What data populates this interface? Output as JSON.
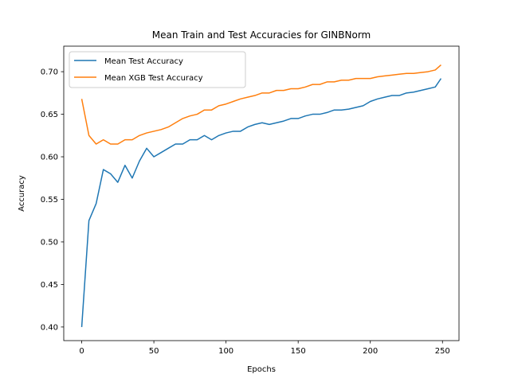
{
  "chart_data": {
    "type": "line",
    "title": "Mean Train and Test Accuracies for GINBNorm",
    "xlabel": "Epochs",
    "ylabel": "Accuracy",
    "xlim": [
      -12.45,
      261.45
    ],
    "ylim": [
      0.384,
      0.73
    ],
    "xticks": [
      0,
      50,
      100,
      150,
      200,
      250
    ],
    "yticks": [
      0.4,
      0.45,
      0.5,
      0.55,
      0.6,
      0.65,
      0.7
    ],
    "ytick_labels": [
      "0.40",
      "0.45",
      "0.50",
      "0.55",
      "0.60",
      "0.65",
      "0.70"
    ],
    "grid": false,
    "legend_position": "upper-left",
    "x": [
      0,
      5,
      10,
      15,
      20,
      25,
      30,
      35,
      40,
      45,
      50,
      55,
      60,
      65,
      70,
      75,
      80,
      85,
      90,
      95,
      100,
      105,
      110,
      115,
      120,
      125,
      130,
      135,
      140,
      145,
      150,
      155,
      160,
      165,
      170,
      175,
      180,
      185,
      190,
      195,
      200,
      205,
      210,
      215,
      220,
      225,
      230,
      235,
      240,
      245,
      249
    ],
    "series": [
      {
        "name": "Mean Test Accuracy",
        "color": "#1f77b4",
        "values": [
          0.4,
          0.525,
          0.545,
          0.585,
          0.58,
          0.57,
          0.59,
          0.575,
          0.595,
          0.61,
          0.6,
          0.605,
          0.61,
          0.615,
          0.615,
          0.62,
          0.62,
          0.625,
          0.62,
          0.625,
          0.628,
          0.63,
          0.63,
          0.635,
          0.638,
          0.64,
          0.638,
          0.64,
          0.642,
          0.645,
          0.645,
          0.648,
          0.65,
          0.65,
          0.652,
          0.655,
          0.655,
          0.656,
          0.658,
          0.66,
          0.665,
          0.668,
          0.67,
          0.672,
          0.672,
          0.675,
          0.676,
          0.678,
          0.68,
          0.682,
          0.692
        ]
      },
      {
        "name": "Mean XGB Test Accuracy",
        "color": "#ff7f0e",
        "values": [
          0.668,
          0.625,
          0.615,
          0.62,
          0.615,
          0.615,
          0.62,
          0.62,
          0.625,
          0.628,
          0.63,
          0.632,
          0.635,
          0.64,
          0.645,
          0.648,
          0.65,
          0.655,
          0.655,
          0.66,
          0.662,
          0.665,
          0.668,
          0.67,
          0.672,
          0.675,
          0.675,
          0.678,
          0.678,
          0.68,
          0.68,
          0.682,
          0.685,
          0.685,
          0.688,
          0.688,
          0.69,
          0.69,
          0.692,
          0.692,
          0.692,
          0.694,
          0.695,
          0.696,
          0.697,
          0.698,
          0.698,
          0.699,
          0.7,
          0.702,
          0.708
        ]
      }
    ]
  }
}
